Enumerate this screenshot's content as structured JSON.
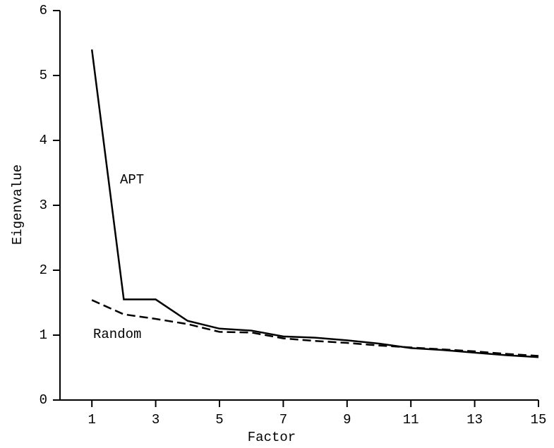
{
  "chart_data": {
    "type": "line",
    "x_label": "Factor",
    "y_label": "Eigenvalue",
    "x": [
      1,
      2,
      3,
      4,
      5,
      6,
      7,
      8,
      9,
      10,
      11,
      12,
      13,
      14,
      15
    ],
    "series": [
      {
        "name": "APT",
        "color": "#000000",
        "dash": "solid",
        "values": [
          5.4,
          1.55,
          1.55,
          1.22,
          1.1,
          1.07,
          0.98,
          0.96,
          0.92,
          0.87,
          0.8,
          0.77,
          0.73,
          0.69,
          0.66
        ]
      },
      {
        "name": "Random",
        "color": "#000000",
        "dash": "dashed",
        "values": [
          1.54,
          1.32,
          1.25,
          1.17,
          1.05,
          1.04,
          0.95,
          0.91,
          0.88,
          0.84,
          0.81,
          0.78,
          0.75,
          0.71,
          0.68
        ]
      }
    ],
    "xlim": [
      0,
      15
    ],
    "xticks": [
      1,
      3,
      5,
      7,
      9,
      11,
      13,
      15
    ],
    "ylim": [
      0,
      6
    ],
    "yticks": [
      0,
      1,
      2,
      3,
      4,
      5,
      6
    ],
    "grid": false
  }
}
